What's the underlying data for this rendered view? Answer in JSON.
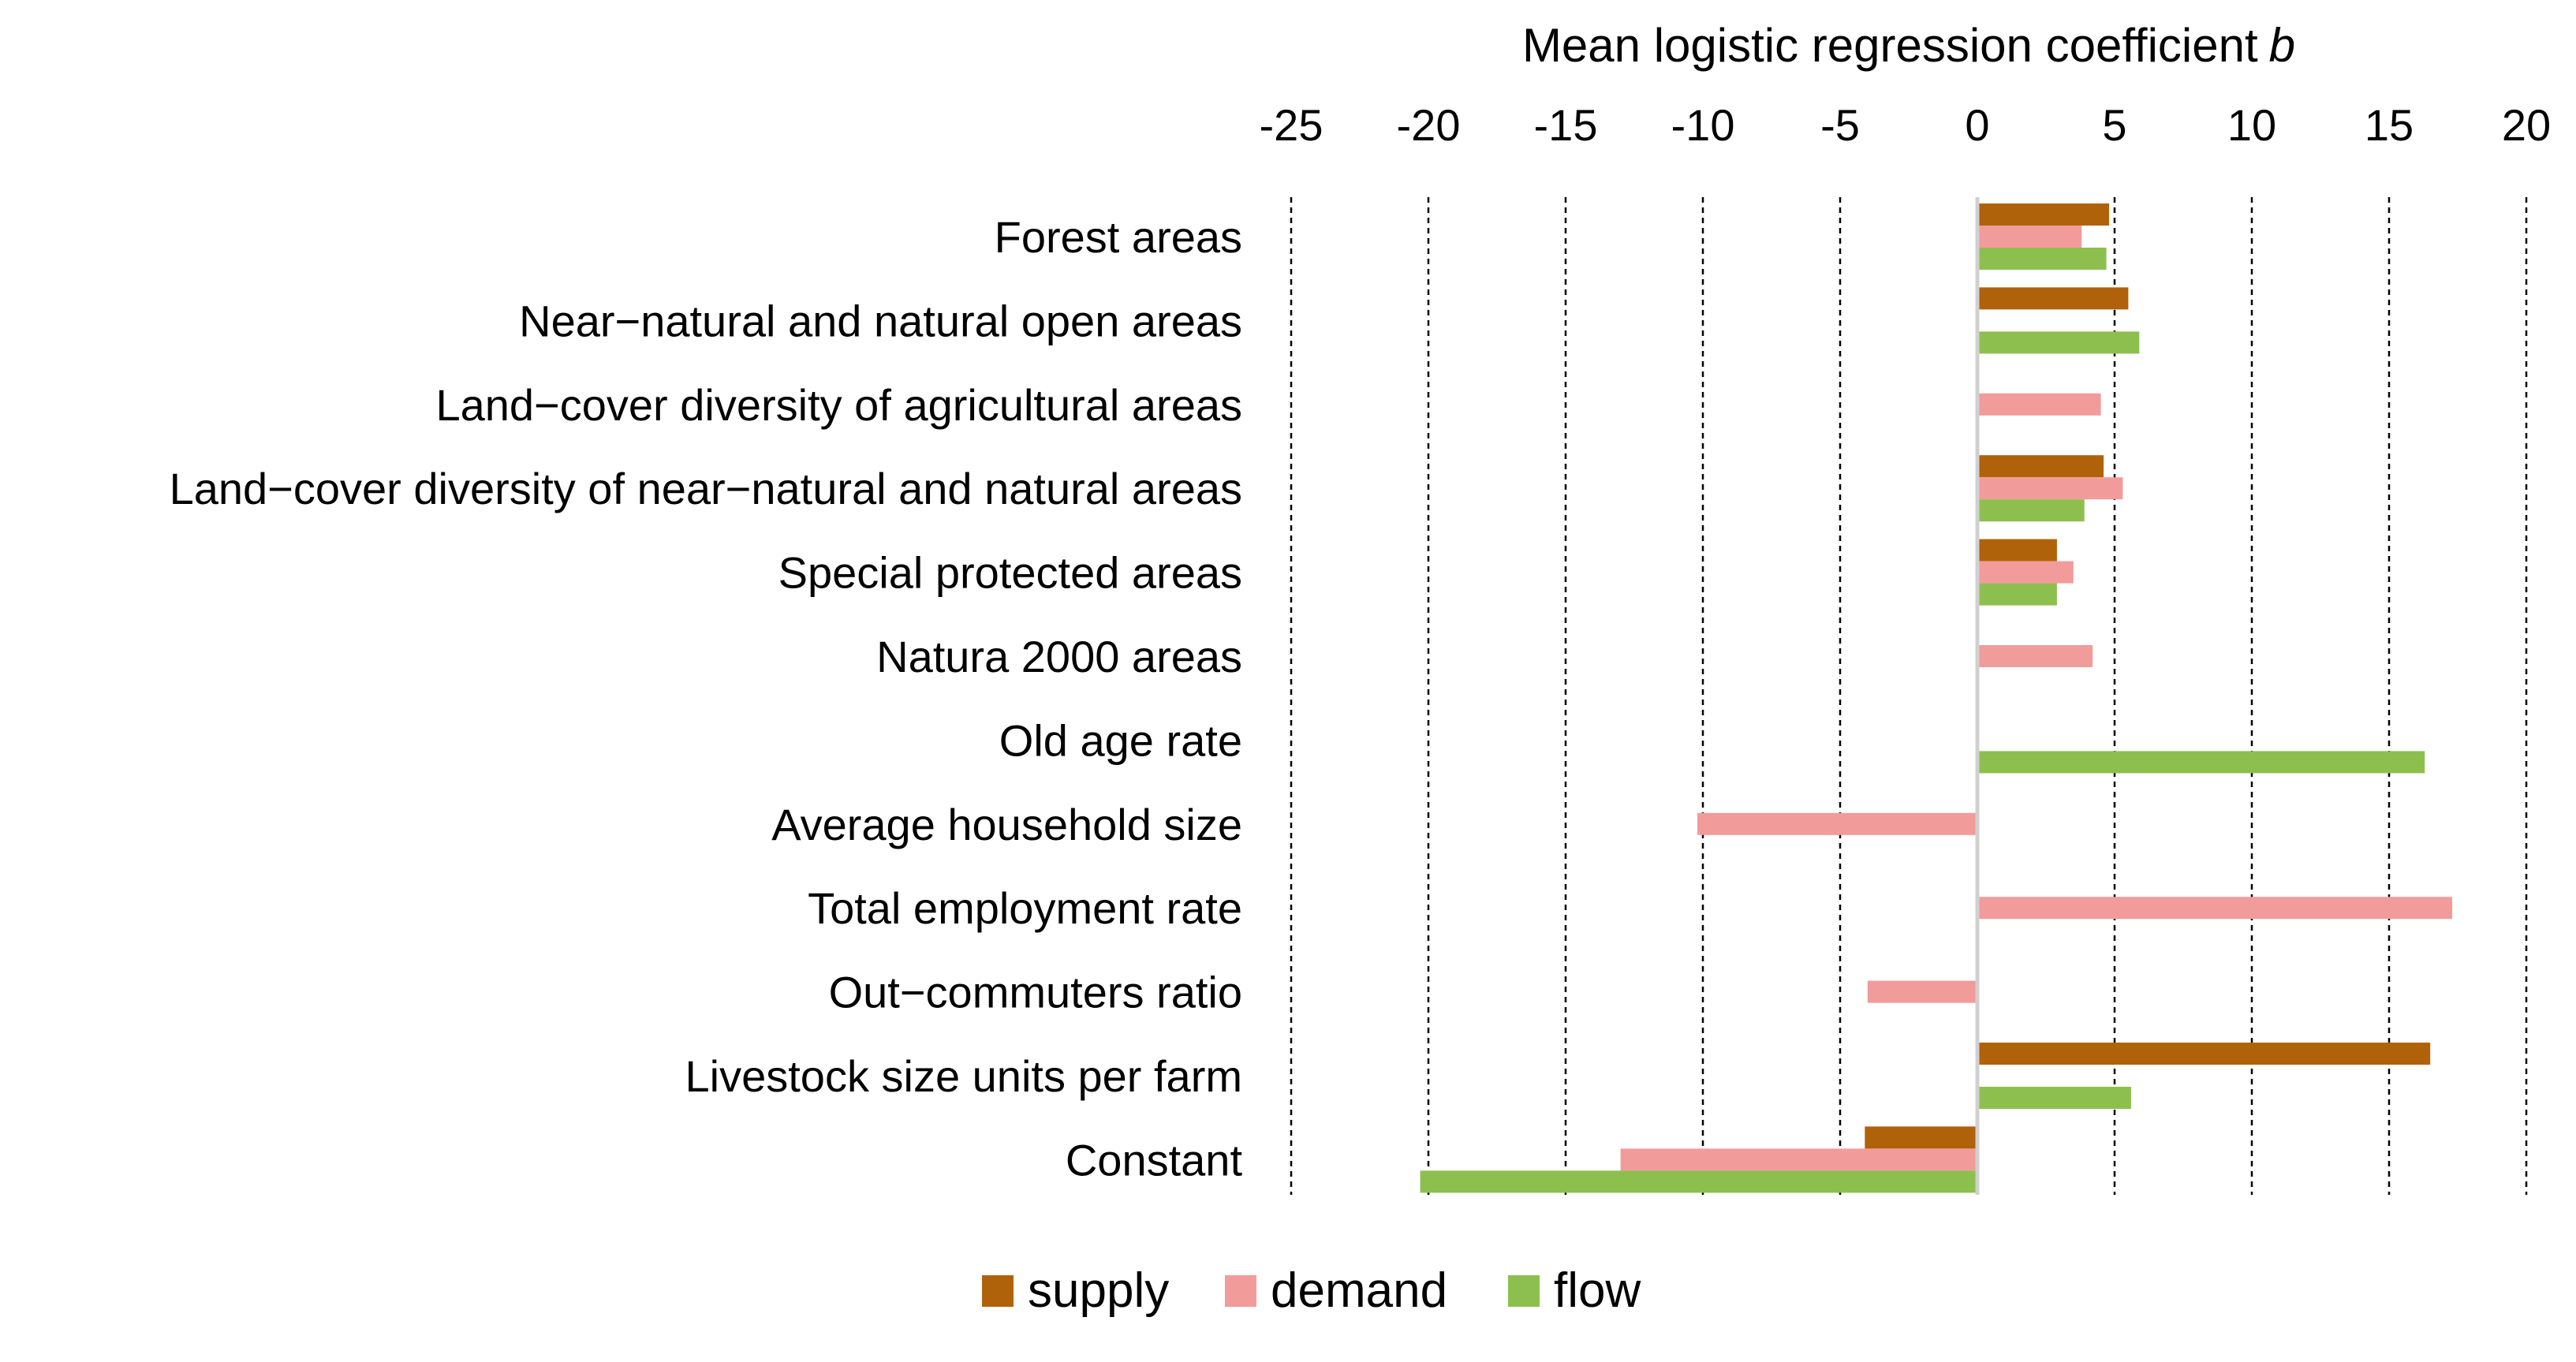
{
  "chart_data": {
    "type": "bar",
    "orientation": "horizontal",
    "title": "Mean logistic regression coefficient",
    "title_italic_suffix": "b",
    "xlabel": "Mean logistic regression coefficient b",
    "ylabel": "",
    "xlim": [
      -25,
      20
    ],
    "xticks": [
      -25,
      -20,
      -15,
      -10,
      -5,
      0,
      5,
      10,
      15,
      20
    ],
    "xtick_labels": [
      "-25",
      "-20",
      "-15",
      "-10",
      "-5",
      "0",
      "5",
      "10",
      "15",
      "20"
    ],
    "axis_position": "top",
    "grid": "vertical dashed",
    "categories": [
      "Forest areas",
      "Near−natural and natural open areas",
      "Land−cover diversity of agricultural areas",
      "Land−cover diversity of near−natural and natural areas",
      "Special protected areas",
      "Natura 2000 areas",
      "Old age rate",
      "Average household size",
      "Total employment rate",
      "Out−commuters ratio",
      "Livestock size units per farm",
      "Constant"
    ],
    "series": [
      {
        "name": "supply",
        "color": "#B0620A",
        "values": [
          4.8,
          5.5,
          null,
          4.6,
          2.9,
          null,
          null,
          null,
          null,
          null,
          16.5,
          -4.1
        ]
      },
      {
        "name": "demand",
        "color": "#F29B9B",
        "values": [
          3.8,
          null,
          4.5,
          5.3,
          3.5,
          4.2,
          null,
          -10.2,
          17.3,
          -4.0,
          null,
          -13.0
        ]
      },
      {
        "name": "flow",
        "color": "#8DBF4E",
        "values": [
          4.7,
          5.9,
          null,
          3.9,
          2.9,
          null,
          16.3,
          null,
          null,
          null,
          5.6,
          -20.3
        ]
      }
    ],
    "legend": {
      "position": "bottom-center",
      "entries": [
        "supply",
        "demand",
        "flow"
      ]
    }
  }
}
